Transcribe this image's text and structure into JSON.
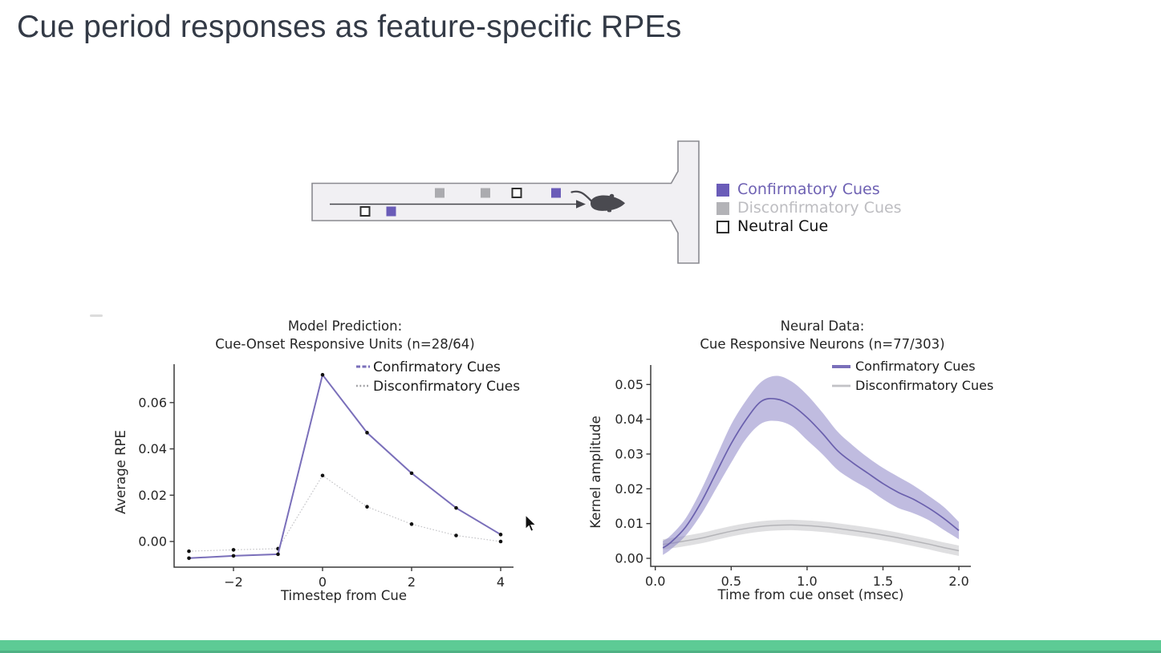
{
  "slide": {
    "title": "Cue period responses as feature-specific RPEs",
    "title_color": "#333a46",
    "background": "#ffffff",
    "footer_bar_color": "#5dcb95"
  },
  "maze": {
    "fill": "#f1f0f3",
    "stroke": "#8a8a90",
    "arrow_color": "#46464c",
    "mouse_color": "#4a4a50",
    "cue_colors": {
      "confirmatory": "#6a5cb8",
      "disconfirmatory": "#ababaf",
      "neutral_fill": "#ffffff",
      "neutral_border": "#2f2f2f"
    },
    "cue_sequence_top": [
      "disconfirmatory",
      "disconfirmatory",
      "neutral",
      "confirmatory"
    ],
    "cue_sequence_bottom": [
      "neutral",
      "confirmatory"
    ]
  },
  "maze_legend": {
    "items": [
      {
        "label": "Confirmatory Cues",
        "swatch": "#6a5cb8",
        "swatch_border": "#6a5cb8",
        "text_color": "#6e61b3"
      },
      {
        "label": "Disconfirmatory Cues",
        "swatch": "#b3b3b7",
        "swatch_border": "#b3b3b7",
        "text_color": "#bdbdc1"
      },
      {
        "label": "Neutral Cue",
        "swatch": "#ffffff",
        "swatch_border": "#2f2f2f",
        "text_color": "#111111"
      }
    ]
  },
  "chart_data": [
    {
      "type": "line",
      "title_lines": [
        "Model Prediction:",
        "Cue-Onset Responsive Units (n=28/64)"
      ],
      "xlabel": "Timestep from Cue",
      "ylabel": "Average RPE",
      "xlim": [
        -3.35,
        4.45
      ],
      "ylim": [
        -0.0115,
        0.078
      ],
      "grid": false,
      "legend_position": "upper right",
      "xticks": {
        "values": [
          -2,
          0,
          2,
          4
        ],
        "labels": [
          "−2",
          "0",
          "2",
          "4"
        ]
      },
      "yticks": {
        "values": [
          0.0,
          0.02,
          0.04,
          0.06
        ],
        "labels": [
          "0.00",
          "0.02",
          "0.04",
          "0.06"
        ]
      },
      "legend": [
        {
          "label": "Confirmatory Cues",
          "color": "#7a6fba",
          "style": "dashed"
        },
        {
          "label": "Disconfirmatory Cues",
          "color": "#9c9ca0",
          "style": "dotted"
        }
      ],
      "series": [
        {
          "name": "Disconfirmatory Cues",
          "color": "#c0c0c4",
          "marker_color": "#111111",
          "line_width": 1.1,
          "dash": "1.6,2.2",
          "x": [
            -3,
            -2,
            -1,
            0,
            1,
            2,
            3,
            4
          ],
          "y": [
            -0.0042,
            -0.0036,
            -0.0031,
            0.0285,
            0.015,
            0.0075,
            0.0026,
            0.0
          ]
        },
        {
          "name": "Confirmatory Cues",
          "color": "#7a6fba",
          "marker_color": "#111111",
          "line_width": 2.0,
          "dash": "",
          "x": [
            -3,
            -2,
            -1,
            0,
            1,
            2,
            3,
            4
          ],
          "y": [
            -0.0072,
            -0.0062,
            -0.0055,
            0.072,
            0.047,
            0.0295,
            0.0145,
            0.003
          ]
        }
      ]
    },
    {
      "type": "line-band",
      "title_lines": [
        "Neural Data:",
        "Cue Responsive Neurons (n=77/303)"
      ],
      "xlabel": "Time from cue onset (msec)",
      "ylabel": "Kernel amplitude",
      "xlim": [
        -0.06,
        2.08
      ],
      "ylim": [
        -0.003,
        0.0565
      ],
      "grid": false,
      "legend_position": "upper right",
      "xticks": {
        "values": [
          0.0,
          0.5,
          1.0,
          1.5,
          2.0
        ],
        "labels": [
          "0.0",
          "0.5",
          "1.0",
          "1.5",
          "2.0"
        ]
      },
      "yticks": {
        "values": [
          0.0,
          0.01,
          0.02,
          0.03,
          0.04,
          0.05
        ],
        "labels": [
          "0.00",
          "0.01",
          "0.02",
          "0.03",
          "0.04",
          "0.05"
        ]
      },
      "legend": [
        {
          "label": "Confirmatory Cues",
          "color": "#7a6fba",
          "style": "solid-thick"
        },
        {
          "label": "Disconfirmatory Cues",
          "color": "#c2c2c6",
          "style": "solid"
        }
      ],
      "series": [
        {
          "name": "Disconfirmatory Cues",
          "line_color": "#b4b4b8",
          "band_color": "#bfbfc3",
          "band_opacity": 0.5,
          "line_width": 1.5,
          "x": [
            0.05,
            0.1,
            0.2,
            0.3,
            0.4,
            0.5,
            0.6,
            0.7,
            0.8,
            0.9,
            1.0,
            1.1,
            1.2,
            1.3,
            1.4,
            1.5,
            1.6,
            1.7,
            1.8,
            1.9,
            2.0
          ],
          "mean": [
            0.004,
            0.0043,
            0.005,
            0.0058,
            0.0068,
            0.0078,
            0.0086,
            0.0092,
            0.0095,
            0.0096,
            0.0094,
            0.0091,
            0.0086,
            0.008,
            0.0074,
            0.0067,
            0.0059,
            0.005,
            0.0041,
            0.0031,
            0.0022
          ],
          "upper": [
            0.0055,
            0.0058,
            0.0065,
            0.0073,
            0.0083,
            0.0093,
            0.0101,
            0.0107,
            0.011,
            0.0111,
            0.0109,
            0.0106,
            0.0101,
            0.0095,
            0.0089,
            0.0082,
            0.0074,
            0.0065,
            0.0056,
            0.0046,
            0.0037
          ],
          "lower": [
            0.0025,
            0.0028,
            0.0035,
            0.0043,
            0.0053,
            0.0063,
            0.0071,
            0.0077,
            0.008,
            0.0081,
            0.0079,
            0.0076,
            0.0071,
            0.0065,
            0.0059,
            0.0052,
            0.0044,
            0.0035,
            0.0026,
            0.0016,
            0.0007
          ]
        },
        {
          "name": "Confirmatory Cues",
          "line_color": "#6a60ad",
          "band_color": "#8d85c6",
          "band_opacity": 0.55,
          "line_width": 1.7,
          "x": [
            0.05,
            0.1,
            0.2,
            0.3,
            0.4,
            0.5,
            0.6,
            0.7,
            0.8,
            0.9,
            1.0,
            1.1,
            1.2,
            1.3,
            1.4,
            1.5,
            1.6,
            1.7,
            1.8,
            1.9,
            2.0
          ],
          "mean": [
            0.003,
            0.0045,
            0.009,
            0.016,
            0.0245,
            0.033,
            0.04,
            0.0452,
            0.0458,
            0.044,
            0.0405,
            0.036,
            0.031,
            0.0275,
            0.0245,
            0.0215,
            0.019,
            0.017,
            0.0145,
            0.0115,
            0.008
          ],
          "upper": [
            0.005,
            0.0065,
            0.0115,
            0.0195,
            0.029,
            0.0385,
            0.0455,
            0.0508,
            0.0525,
            0.0508,
            0.047,
            0.042,
            0.0365,
            0.0325,
            0.029,
            0.026,
            0.0235,
            0.021,
            0.018,
            0.0148,
            0.0105
          ],
          "lower": [
            0.001,
            0.0025,
            0.0065,
            0.0125,
            0.02,
            0.0275,
            0.0345,
            0.0388,
            0.0395,
            0.038,
            0.034,
            0.03,
            0.0255,
            0.0225,
            0.02,
            0.017,
            0.0145,
            0.013,
            0.011,
            0.0082,
            0.0055
          ]
        }
      ]
    }
  ]
}
